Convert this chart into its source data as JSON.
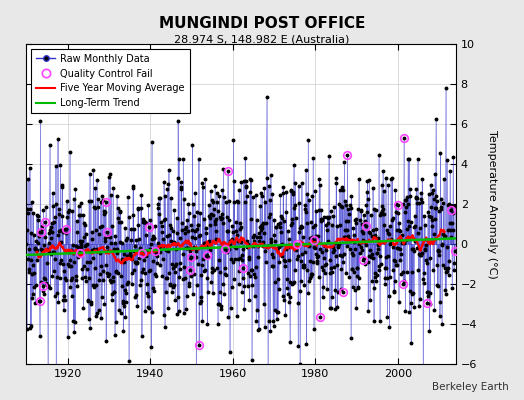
{
  "title": "MUNGINDI POST OFFICE",
  "subtitle": "28.974 S, 148.982 E (Australia)",
  "ylabel": "Temperature Anomaly (°C)",
  "credit": "Berkeley Earth",
  "ylim": [
    -6,
    10
  ],
  "xlim": [
    1910,
    2014
  ],
  "yticks": [
    -6,
    -4,
    -2,
    0,
    2,
    4,
    6,
    8,
    10
  ],
  "xticks": [
    1920,
    1940,
    1960,
    1980,
    2000
  ],
  "background_color": "#e8e8e8",
  "plot_bg_color": "#ffffff",
  "raw_line_color": "#3333cc",
  "raw_dot_color": "#000000",
  "qc_fail_color": "#ff44ff",
  "moving_avg_color": "#ff0000",
  "trend_color": "#00bb00",
  "noise_std": 2.0,
  "trend_slope": 0.008,
  "seed": 17
}
